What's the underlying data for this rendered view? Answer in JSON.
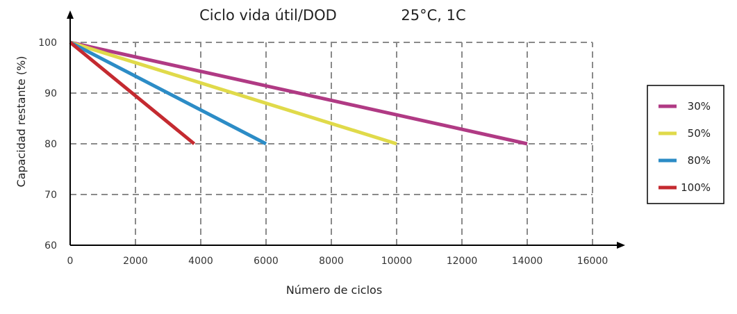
{
  "chart_data": {
    "type": "line",
    "title": "Ciclo vida útil/DOD",
    "subtitle": "25°C, 1C",
    "xlabel": "Número de ciclos",
    "ylabel": "Capacidad restante (%)",
    "xlim": [
      0,
      16000
    ],
    "ylim": [
      60,
      100
    ],
    "xticks": [
      0,
      2000,
      4000,
      6000,
      8000,
      10000,
      12000,
      14000,
      16000
    ],
    "yticks": [
      60,
      70,
      80,
      90,
      100
    ],
    "grid": true,
    "legend_position": "right",
    "series": [
      {
        "name": "30%",
        "color": "#b03a84",
        "x": [
          0,
          14000
        ],
        "y": [
          100,
          80
        ]
      },
      {
        "name": "50%",
        "color": "#e0da4a",
        "x": [
          0,
          10000
        ],
        "y": [
          100,
          80
        ]
      },
      {
        "name": "80%",
        "color": "#2c8cc6",
        "x": [
          0,
          6000
        ],
        "y": [
          100,
          80
        ]
      },
      {
        "name": "100%",
        "color": "#c42a30",
        "x": [
          0,
          3800
        ],
        "y": [
          100,
          80
        ]
      }
    ]
  }
}
